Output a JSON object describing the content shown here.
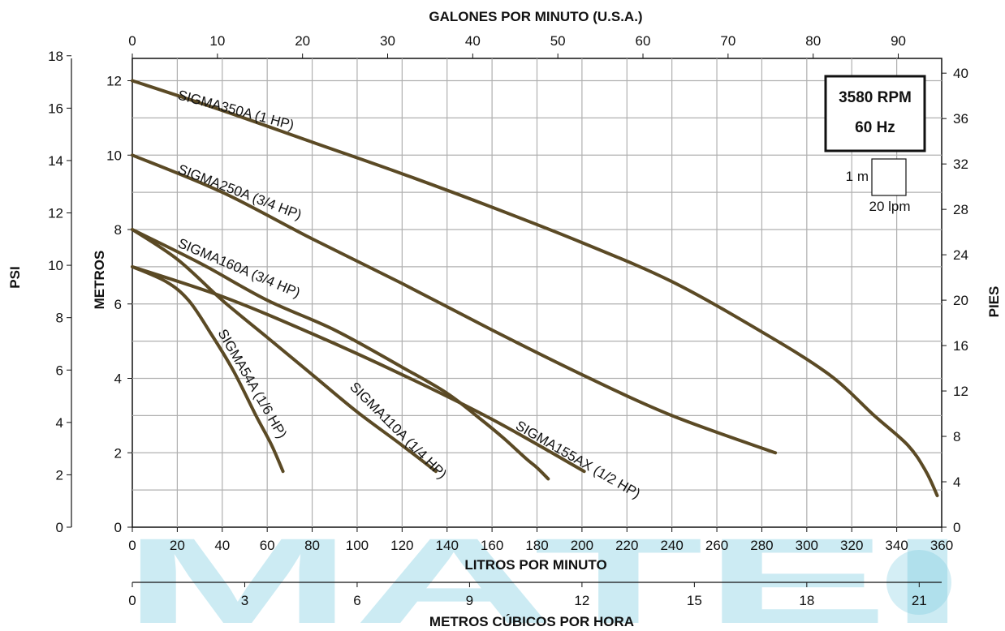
{
  "chart_data": {
    "type": "line",
    "axes": {
      "bottom": {
        "title": "LITROS POR MINUTO",
        "range": [
          0,
          360
        ],
        "ticks": [
          0,
          20,
          40,
          60,
          80,
          100,
          120,
          140,
          160,
          180,
          200,
          220,
          240,
          260,
          280,
          300,
          320,
          340,
          360
        ]
      },
      "top": {
        "title": "GALONES POR MINUTO (U.S.A.)",
        "range": [
          0,
          95.1
        ],
        "ticks": [
          0,
          10,
          20,
          30,
          40,
          50,
          60,
          70,
          80,
          90
        ]
      },
      "left_inner": {
        "title": "METROS",
        "range": [
          0,
          12.6
        ],
        "ticks": [
          0,
          2,
          4,
          6,
          8,
          10,
          12
        ]
      },
      "left_outer": {
        "title": "PSI",
        "range": [
          0,
          17.9
        ],
        "ticks": [
          0,
          2,
          4,
          6,
          8,
          10,
          12,
          14,
          16,
          18
        ]
      },
      "right": {
        "title": "PIES",
        "range": [
          0,
          41.3
        ],
        "ticks": [
          0,
          4,
          8,
          12,
          16,
          20,
          24,
          28,
          32,
          36,
          40
        ]
      },
      "sub_bottom": {
        "title": "METROS CÚBICOS POR HORA",
        "range": [
          0,
          21.6
        ],
        "ticks": [
          0,
          3,
          6,
          9,
          12,
          15,
          18,
          21
        ]
      }
    },
    "grid": true,
    "series": [
      {
        "name": "SIGMA350A (1 HP)",
        "x": [
          0,
          40,
          80,
          120,
          160,
          200,
          240,
          280,
          310,
          330,
          345,
          353,
          358
        ],
        "y": [
          12.0,
          11.2,
          10.35,
          9.5,
          8.6,
          7.65,
          6.6,
          5.25,
          4.1,
          3.0,
          2.2,
          1.5,
          0.85
        ]
      },
      {
        "name": "SIGMA250A (3/4 HP)",
        "x": [
          0,
          40,
          80,
          120,
          160,
          200,
          240,
          286
        ],
        "y": [
          10.0,
          9.0,
          7.75,
          6.55,
          5.3,
          4.1,
          3.0,
          2.0
        ]
      },
      {
        "name": "SIGMA160A (3/4 HP)",
        "x": [
          0,
          30,
          60,
          90,
          120,
          140,
          155,
          165,
          175,
          180,
          185
        ],
        "y": [
          8.0,
          7.1,
          6.1,
          5.3,
          4.3,
          3.6,
          2.9,
          2.4,
          1.85,
          1.6,
          1.3
        ]
      },
      {
        "name": "SIGMA155AX (1/2 HP)",
        "x": [
          0,
          40,
          80,
          120,
          160,
          201
        ],
        "y": [
          7.0,
          6.2,
          5.2,
          4.1,
          2.9,
          1.5
        ]
      },
      {
        "name": "SIGMA110A (1/4 HP)",
        "x": [
          0,
          20,
          40,
          60,
          80,
          100,
          120,
          135
        ],
        "y": [
          8.0,
          7.2,
          6.1,
          5.1,
          4.1,
          3.1,
          2.2,
          1.5
        ]
      },
      {
        "name": "SIGMA54A (1/6 HP)",
        "x": [
          0,
          15,
          25,
          35,
          45,
          55,
          62,
          67
        ],
        "y": [
          7.0,
          6.6,
          6.1,
          5.2,
          4.2,
          3.0,
          2.2,
          1.5
        ]
      }
    ],
    "annotations": {
      "speed": "3580 RPM",
      "frequency": "60 Hz",
      "scale_vertical": "1 m",
      "scale_horizontal": "20 lpm"
    }
  },
  "watermark": "MATEI"
}
